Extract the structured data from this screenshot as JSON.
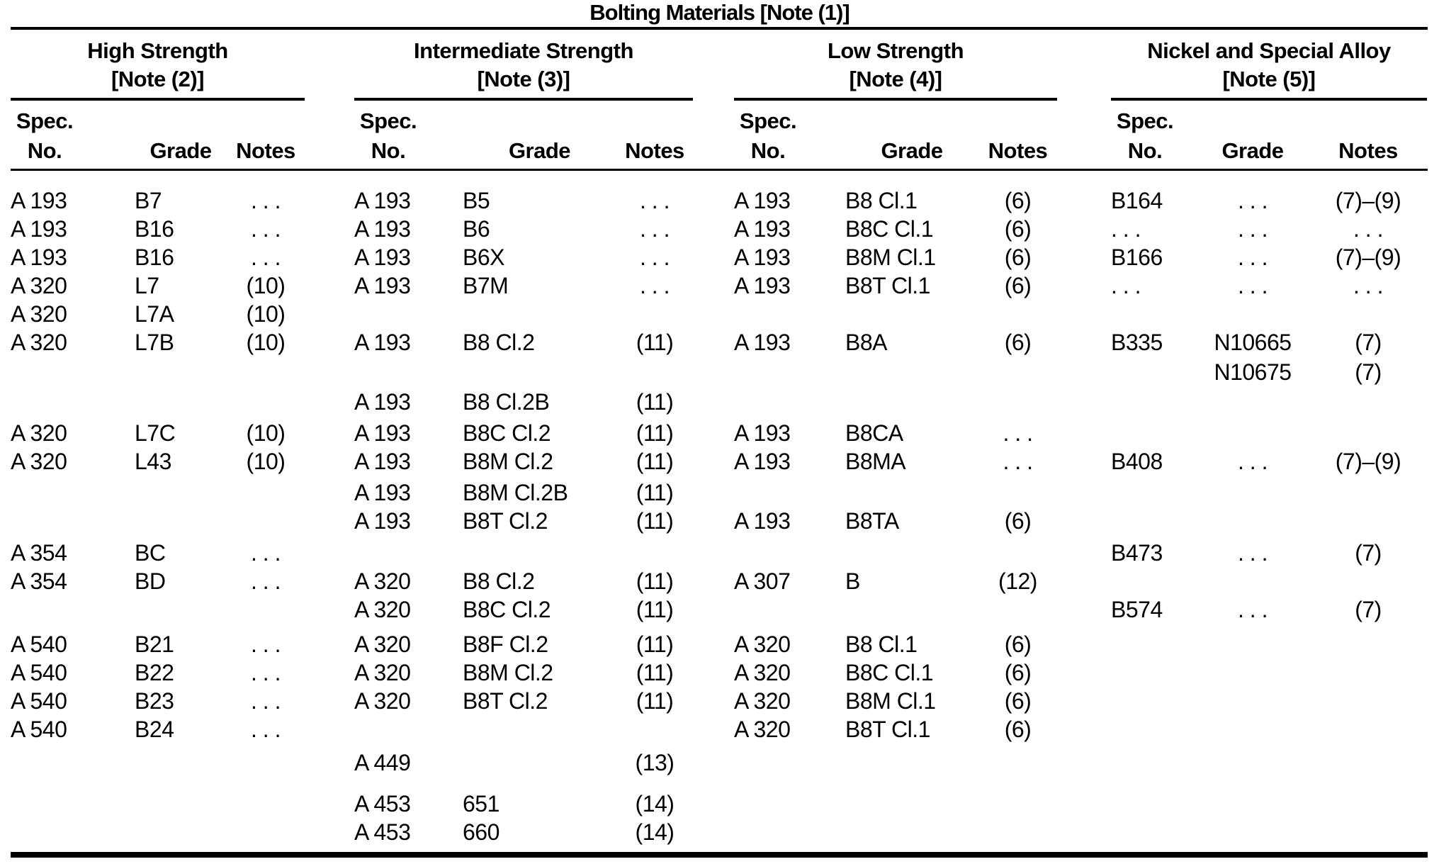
{
  "title": "Bolting Materials [Note (1)]",
  "colors": {
    "text": "#000000",
    "background": "#ffffff",
    "rule": "#000000"
  },
  "groups": [
    {
      "title": "High Strength",
      "note": "[Note (2)]"
    },
    {
      "title": "Intermediate Strength",
      "note": "[Note (3)]"
    },
    {
      "title": "Low Strength",
      "note": "[Note (4)]"
    },
    {
      "title": "Nickel and Special Alloy",
      "note": "[Note (5)]"
    }
  ],
  "columns": {
    "spec_line1": "Spec.",
    "spec_line2": "No.",
    "grade": "Grade",
    "notes": "Notes"
  },
  "rows": [
    [
      "A 193",
      "B7",
      ". . .",
      "A 193",
      "B5",
      ". . .",
      "A 193",
      "B8 Cl.1",
      "(6)",
      "B164",
      ". . .",
      "(7)–(9)"
    ],
    [
      "A 193",
      "B16",
      ". . .",
      "A 193",
      "B6",
      ". . .",
      "A 193",
      "B8C Cl.1",
      "(6)",
      ". . .",
      ". . .",
      ". . ."
    ],
    [
      "A 193",
      "B16",
      ". . .",
      "A 193",
      "B6X",
      ". . .",
      "A 193",
      "B8M Cl.1",
      "(6)",
      "B166",
      ". . .",
      "(7)–(9)"
    ],
    [
      "A 320",
      "L7",
      "(10)",
      "A 193",
      "B7M",
      ". . .",
      "A 193",
      "B8T Cl.1",
      "(6)",
      ". . .",
      ". . .",
      ". . ."
    ],
    [
      "A 320",
      "L7A",
      "(10)",
      "",
      "",
      "",
      "",
      "",
      "",
      "",
      "",
      ""
    ],
    [
      "A 320",
      "L7B",
      "(10)",
      "A 193",
      "B8 Cl.2",
      "(11)",
      "A 193",
      "B8A",
      "(6)",
      "B335",
      "N10665",
      "(7)"
    ],
    [
      "",
      "",
      "",
      "",
      "",
      "",
      "",
      "",
      "",
      "",
      "N10675",
      "(7)"
    ],
    [
      "",
      "",
      "",
      "A 193",
      "B8 Cl.2B",
      "(11)",
      "",
      "",
      "",
      "",
      "",
      ""
    ],
    [
      "A 320",
      "L7C",
      "(10)",
      "A 193",
      "B8C Cl.2",
      "(11)",
      "A 193",
      "B8CA",
      ". . .",
      "",
      "",
      ""
    ],
    [
      "A 320",
      "L43",
      "(10)",
      "A 193",
      "B8M Cl.2",
      "(11)",
      "A 193",
      "B8MA",
      ". . .",
      "B408",
      ". . .",
      "(7)–(9)"
    ],
    [
      "",
      "",
      "",
      "A 193",
      "B8M Cl.2B",
      "(11)",
      "",
      "",
      "",
      "",
      "",
      ""
    ],
    [
      "",
      "",
      "",
      "A 193",
      "B8T Cl.2",
      "(11)",
      "A 193",
      "B8TA",
      "(6)",
      "",
      "",
      ""
    ],
    [
      "A 354",
      "BC",
      ". . .",
      "",
      "",
      "",
      "",
      "",
      "",
      "B473",
      ". . .",
      "(7)"
    ],
    [
      "A 354",
      "BD",
      ". . .",
      "A 320",
      "B8 Cl.2",
      "(11)",
      "A 307",
      "B",
      "(12)",
      "",
      "",
      ""
    ],
    [
      "",
      "",
      "",
      "A 320",
      "B8C Cl.2",
      "(11)",
      "",
      "",
      "",
      "B574",
      ". . .",
      "(7)"
    ],
    [
      "A 540",
      "B21",
      ". . .",
      "A 320",
      "B8F Cl.2",
      "(11)",
      "A 320",
      "B8 Cl.1",
      "(6)",
      "",
      "",
      ""
    ],
    [
      "A 540",
      "B22",
      ". . .",
      "A 320",
      "B8M Cl.2",
      "(11)",
      "A 320",
      "B8C Cl.1",
      "(6)",
      "",
      "",
      ""
    ],
    [
      "A 540",
      "B23",
      ". . .",
      "A 320",
      "B8T Cl.2",
      "(11)",
      "A 320",
      "B8M Cl.1",
      "(6)",
      "",
      "",
      ""
    ],
    [
      "A 540",
      "B24",
      ". . .",
      "",
      "",
      "",
      "A 320",
      "B8T Cl.1",
      "(6)",
      "",
      "",
      ""
    ],
    [
      "",
      "",
      "",
      "A 449",
      "",
      "(13)",
      "",
      "",
      "",
      "",
      "",
      ""
    ],
    [
      "",
      "",
      "",
      "A 453",
      "651",
      "(14)",
      "",
      "",
      "",
      "",
      "",
      ""
    ],
    [
      "",
      "",
      "",
      "A 453",
      "660",
      "(14)",
      "",
      "",
      "",
      "",
      "",
      ""
    ]
  ]
}
